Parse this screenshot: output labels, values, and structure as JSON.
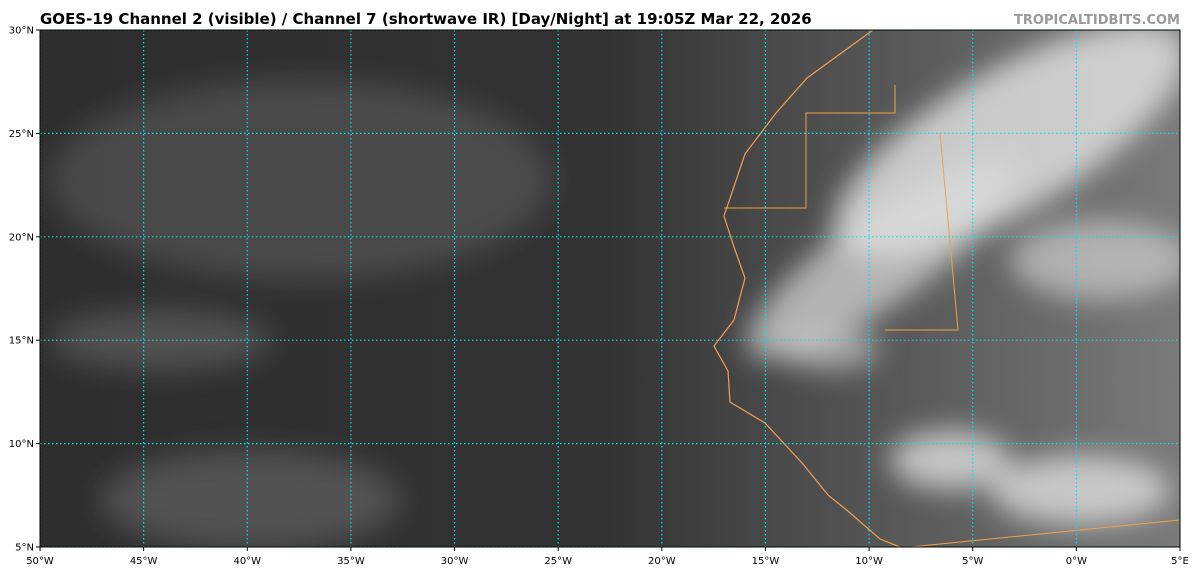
{
  "header": {
    "title": "GOES-19 Channel 2 (visible) / Channel 7 (shortwave IR) [Day/Night] at 19:05Z Mar 22, 2026",
    "credit": "TROPICALTIDBITS.COM"
  },
  "map": {
    "lon_range": [
      -50,
      5
    ],
    "lat_range": [
      5,
      30
    ],
    "lat_ticks": [
      {
        "value": 30,
        "label": "30°N"
      },
      {
        "value": 25,
        "label": "25°N"
      },
      {
        "value": 20,
        "label": "20°N"
      },
      {
        "value": 15,
        "label": "15°N"
      },
      {
        "value": 10,
        "label": "10°N"
      },
      {
        "value": 5,
        "label": "5°N"
      }
    ],
    "lon_ticks": [
      {
        "value": -50,
        "label": "50°W"
      },
      {
        "value": -45,
        "label": "45°W"
      },
      {
        "value": -40,
        "label": "40°W"
      },
      {
        "value": -35,
        "label": "35°W"
      },
      {
        "value": -30,
        "label": "30°W"
      },
      {
        "value": -25,
        "label": "25°W"
      },
      {
        "value": -20,
        "label": "20°W"
      },
      {
        "value": -15,
        "label": "15°W"
      },
      {
        "value": -10,
        "label": "10°W"
      },
      {
        "value": -5,
        "label": "5°W"
      },
      {
        "value": 0,
        "label": "0°W"
      },
      {
        "value": 5,
        "label": "5°E"
      }
    ],
    "grid_color": "#00e5e5"
  }
}
